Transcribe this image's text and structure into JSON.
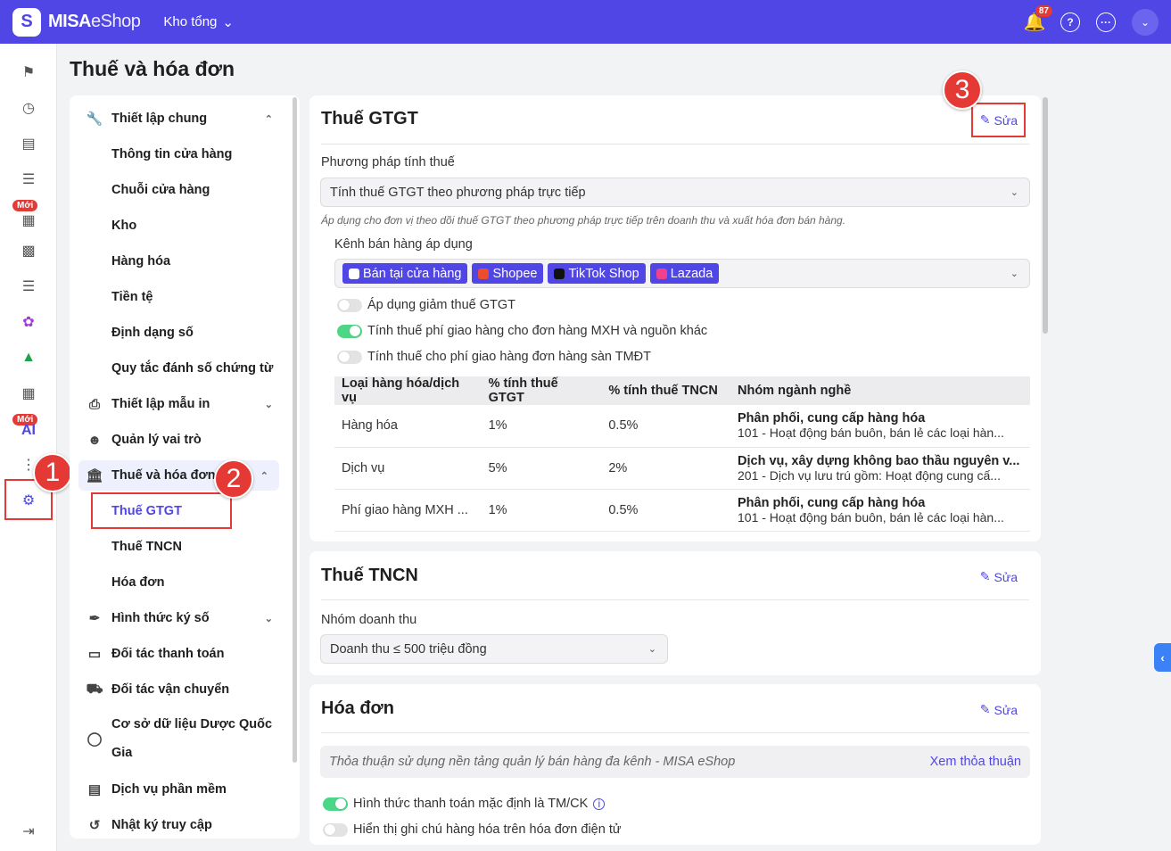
{
  "topbar": {
    "brand_bold": "MISA",
    "brand_light": "eShop",
    "store": "Kho tổng",
    "notif_count": "87"
  },
  "leftnav": {
    "badges": [
      "Mới",
      "Mới"
    ],
    "ai_label": "AI"
  },
  "page_title": "Thuế và hóa đơn",
  "steps": [
    "1",
    "2",
    "3"
  ],
  "sidebar": {
    "items": [
      {
        "label": "Thiết lập chung",
        "icon": "wrench-icon"
      },
      {
        "label": "Thông tin cửa hàng"
      },
      {
        "label": "Chuỗi cửa hàng"
      },
      {
        "label": "Kho"
      },
      {
        "label": "Hàng hóa"
      },
      {
        "label": "Tiền tệ"
      },
      {
        "label": "Định dạng số"
      },
      {
        "label": "Quy tắc đánh số chứng từ"
      },
      {
        "label": "Thiết lập mẫu in",
        "icon": "printer-icon"
      },
      {
        "label": "Quản lý vai trò",
        "icon": "user-role-icon"
      },
      {
        "label": "Thuế và hóa đơn",
        "icon": "bank-icon"
      },
      {
        "label": "Thuế GTGT"
      },
      {
        "label": "Thuế TNCN"
      },
      {
        "label": "Hóa đơn"
      },
      {
        "label": "Hình thức ký số",
        "icon": "feather-icon"
      },
      {
        "label": "Đối tác thanh toán",
        "icon": "card-icon"
      },
      {
        "label": "Đối tác vận chuyển",
        "icon": "truck-icon"
      },
      {
        "label": "Cơ sở dữ liệu Dược Quốc",
        "label2": "Gia",
        "icon": "pill-icon"
      },
      {
        "label": "Dịch vụ phần mềm",
        "icon": "document-icon"
      },
      {
        "label": "Nhật ký truy cập",
        "icon": "history-icon"
      }
    ]
  },
  "vat": {
    "title": "Thuế GTGT",
    "edit": "Sửa",
    "method_label": "Phương pháp tính thuế",
    "method_value": "Tính thuế GTGT theo phương pháp trực tiếp",
    "hint": "Áp dụng cho đơn vị theo dõi thuế GTGT theo phương pháp trực tiếp trên doanh thu và xuất hóa đơn bán hàng.",
    "channel_label": "Kênh bán hàng áp dụng",
    "channels": [
      "Bán tại cửa hàng",
      "Shopee",
      "TikTok Shop",
      "Lazada"
    ],
    "toggles": [
      {
        "label": "Áp dụng giảm thuế GTGT",
        "on": false
      },
      {
        "label": "Tính thuế phí giao hàng cho đơn hàng MXH và nguồn khác",
        "on": true
      },
      {
        "label": "Tính thuế cho phí giao hàng đơn hàng sàn TMĐT",
        "on": false
      }
    ],
    "table": {
      "headers": [
        "Loại hàng hóa/dịch vụ",
        "% tính thuế GTGT",
        "% tính thuế TNCN",
        "Nhóm ngành nghề"
      ],
      "rows": [
        {
          "type": "Hàng hóa",
          "vat": "1%",
          "pit": "0.5%",
          "group": "Phân phối, cung cấp hàng hóa",
          "detail": "101 - Hoạt động bán buôn, bán lẻ các loại hàn..."
        },
        {
          "type": "Dịch vụ",
          "vat": "5%",
          "pit": "2%",
          "group": "Dịch vụ, xây dựng không bao thầu nguyên v...",
          "detail": "201 - Dịch vụ lưu trú gồm: Hoạt động cung cấ..."
        },
        {
          "type": "Phí giao hàng MXH ...",
          "vat": "1%",
          "pit": "0.5%",
          "group": "Phân phối, cung cấp hàng hóa",
          "detail": "101 - Hoạt động bán buôn, bán lẻ các loại hàn..."
        }
      ]
    }
  },
  "pit": {
    "title": "Thuế TNCN",
    "edit": "Sửa",
    "revenue_label": "Nhóm doanh thu",
    "revenue_value": "Doanh thu ≤ 500 triệu đồng"
  },
  "invoice": {
    "title": "Hóa đơn",
    "edit": "Sửa",
    "agreement": "Thỏa thuận sử dụng nền tảng quản lý bán hàng đa kênh - MISA eShop",
    "agreement_link": "Xem thỏa thuận",
    "toggles": [
      {
        "label": "Hình thức thanh toán mặc định là TM/CK",
        "on": true
      },
      {
        "label": "Hiển thị ghi chú hàng hóa trên hóa đơn điện tử",
        "on": false
      }
    ]
  },
  "colors": {
    "brand": "#4f46e5",
    "highlight": "#e53935",
    "toggle_on": "#4cd686"
  }
}
